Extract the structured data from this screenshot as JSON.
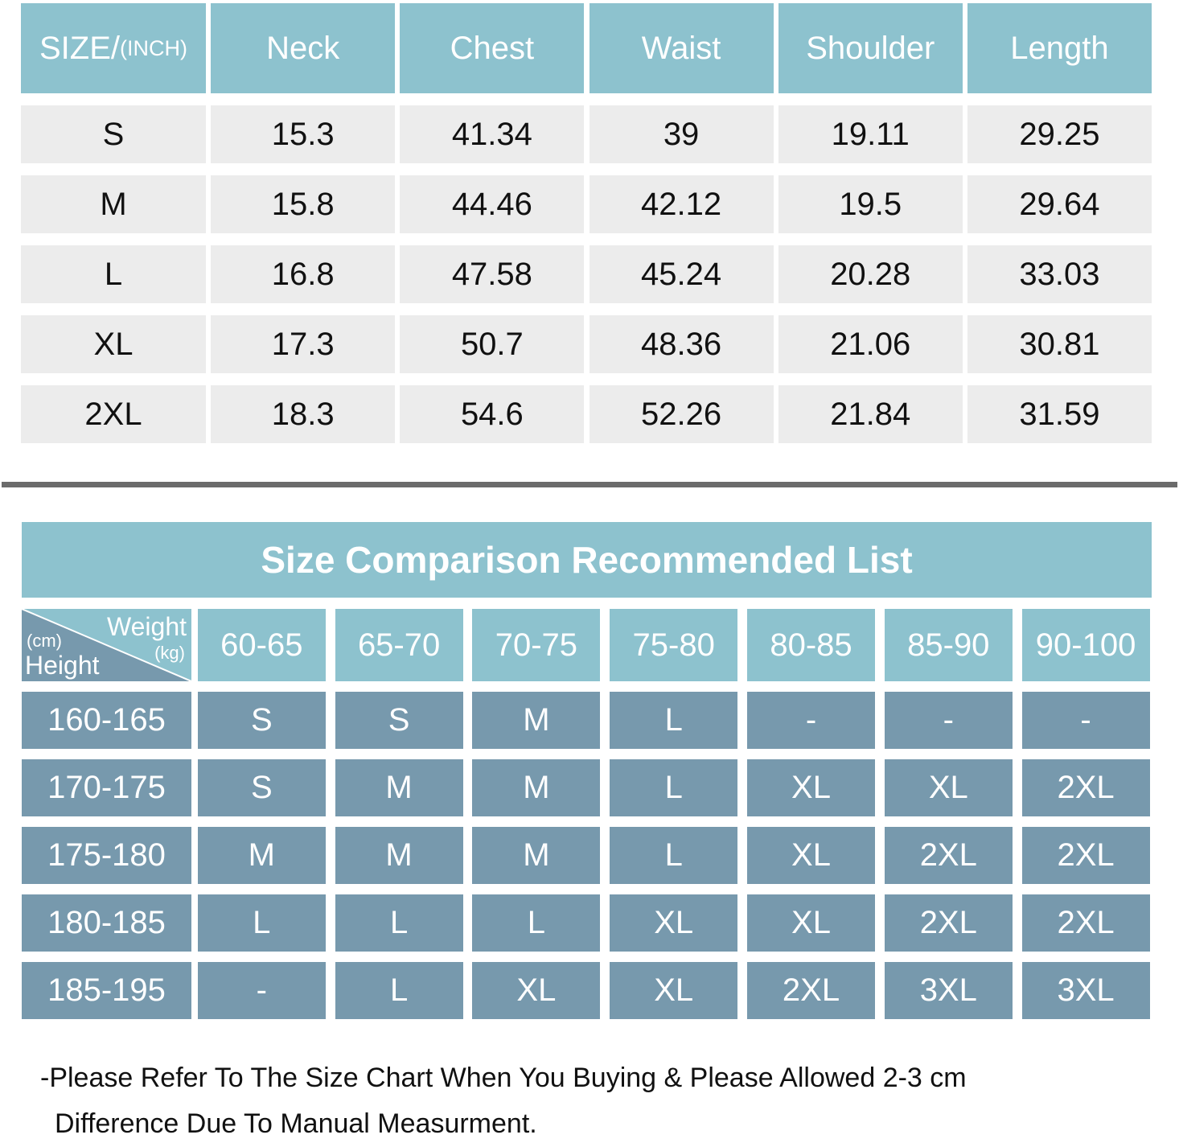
{
  "size_chart": {
    "header_main": "SIZE/",
    "header_unit": "(INCH)",
    "columns": [
      "Neck",
      "Chest",
      "Waist",
      "Shoulder",
      "Length"
    ],
    "rows": [
      [
        "S",
        "15.3",
        "41.34",
        "39",
        "19.11",
        "29.25"
      ],
      [
        "M",
        "15.8",
        "44.46",
        "42.12",
        "19.5",
        "29.64"
      ],
      [
        "L",
        "16.8",
        "47.58",
        "45.24",
        "20.28",
        "33.03"
      ],
      [
        "XL",
        "17.3",
        "50.7",
        "48.36",
        "21.06",
        "30.81"
      ],
      [
        "2XL",
        "18.3",
        "54.6",
        "52.26",
        "21.84",
        "31.59"
      ]
    ]
  },
  "comparison": {
    "title": "Size Comparison Recommended List",
    "corner": {
      "weight": "Weight",
      "weight_unit": "(kg)",
      "height": "Height",
      "height_unit": "(cm)"
    },
    "weights": [
      "60-65",
      "65-70",
      "70-75",
      "75-80",
      "80-85",
      "85-90",
      "90-100"
    ],
    "rows": [
      {
        "height": "160-165",
        "sizes": [
          "S",
          "S",
          "M",
          "L",
          "-",
          "-",
          "-"
        ]
      },
      {
        "height": "170-175",
        "sizes": [
          "S",
          "M",
          "M",
          "L",
          "XL",
          "XL",
          "2XL"
        ]
      },
      {
        "height": "175-180",
        "sizes": [
          "M",
          "M",
          "M",
          "L",
          "XL",
          "2XL",
          "2XL"
        ]
      },
      {
        "height": "180-185",
        "sizes": [
          "L",
          "L",
          "L",
          "XL",
          "XL",
          "2XL",
          "2XL"
        ]
      },
      {
        "height": "185-195",
        "sizes": [
          "-",
          "L",
          "XL",
          "XL",
          "2XL",
          "3XL",
          "3XL"
        ]
      }
    ]
  },
  "note": {
    "line1": "-Please Refer To The Size Chart When You Buying & Please Allowed 2-3 cm",
    "line2": "Difference Due To Manual Measurment."
  },
  "colors": {
    "header": "#8dc2ce",
    "light_cell": "#ececec",
    "dark_cell": "#7799ad",
    "separator": "#6b6b6b"
  }
}
